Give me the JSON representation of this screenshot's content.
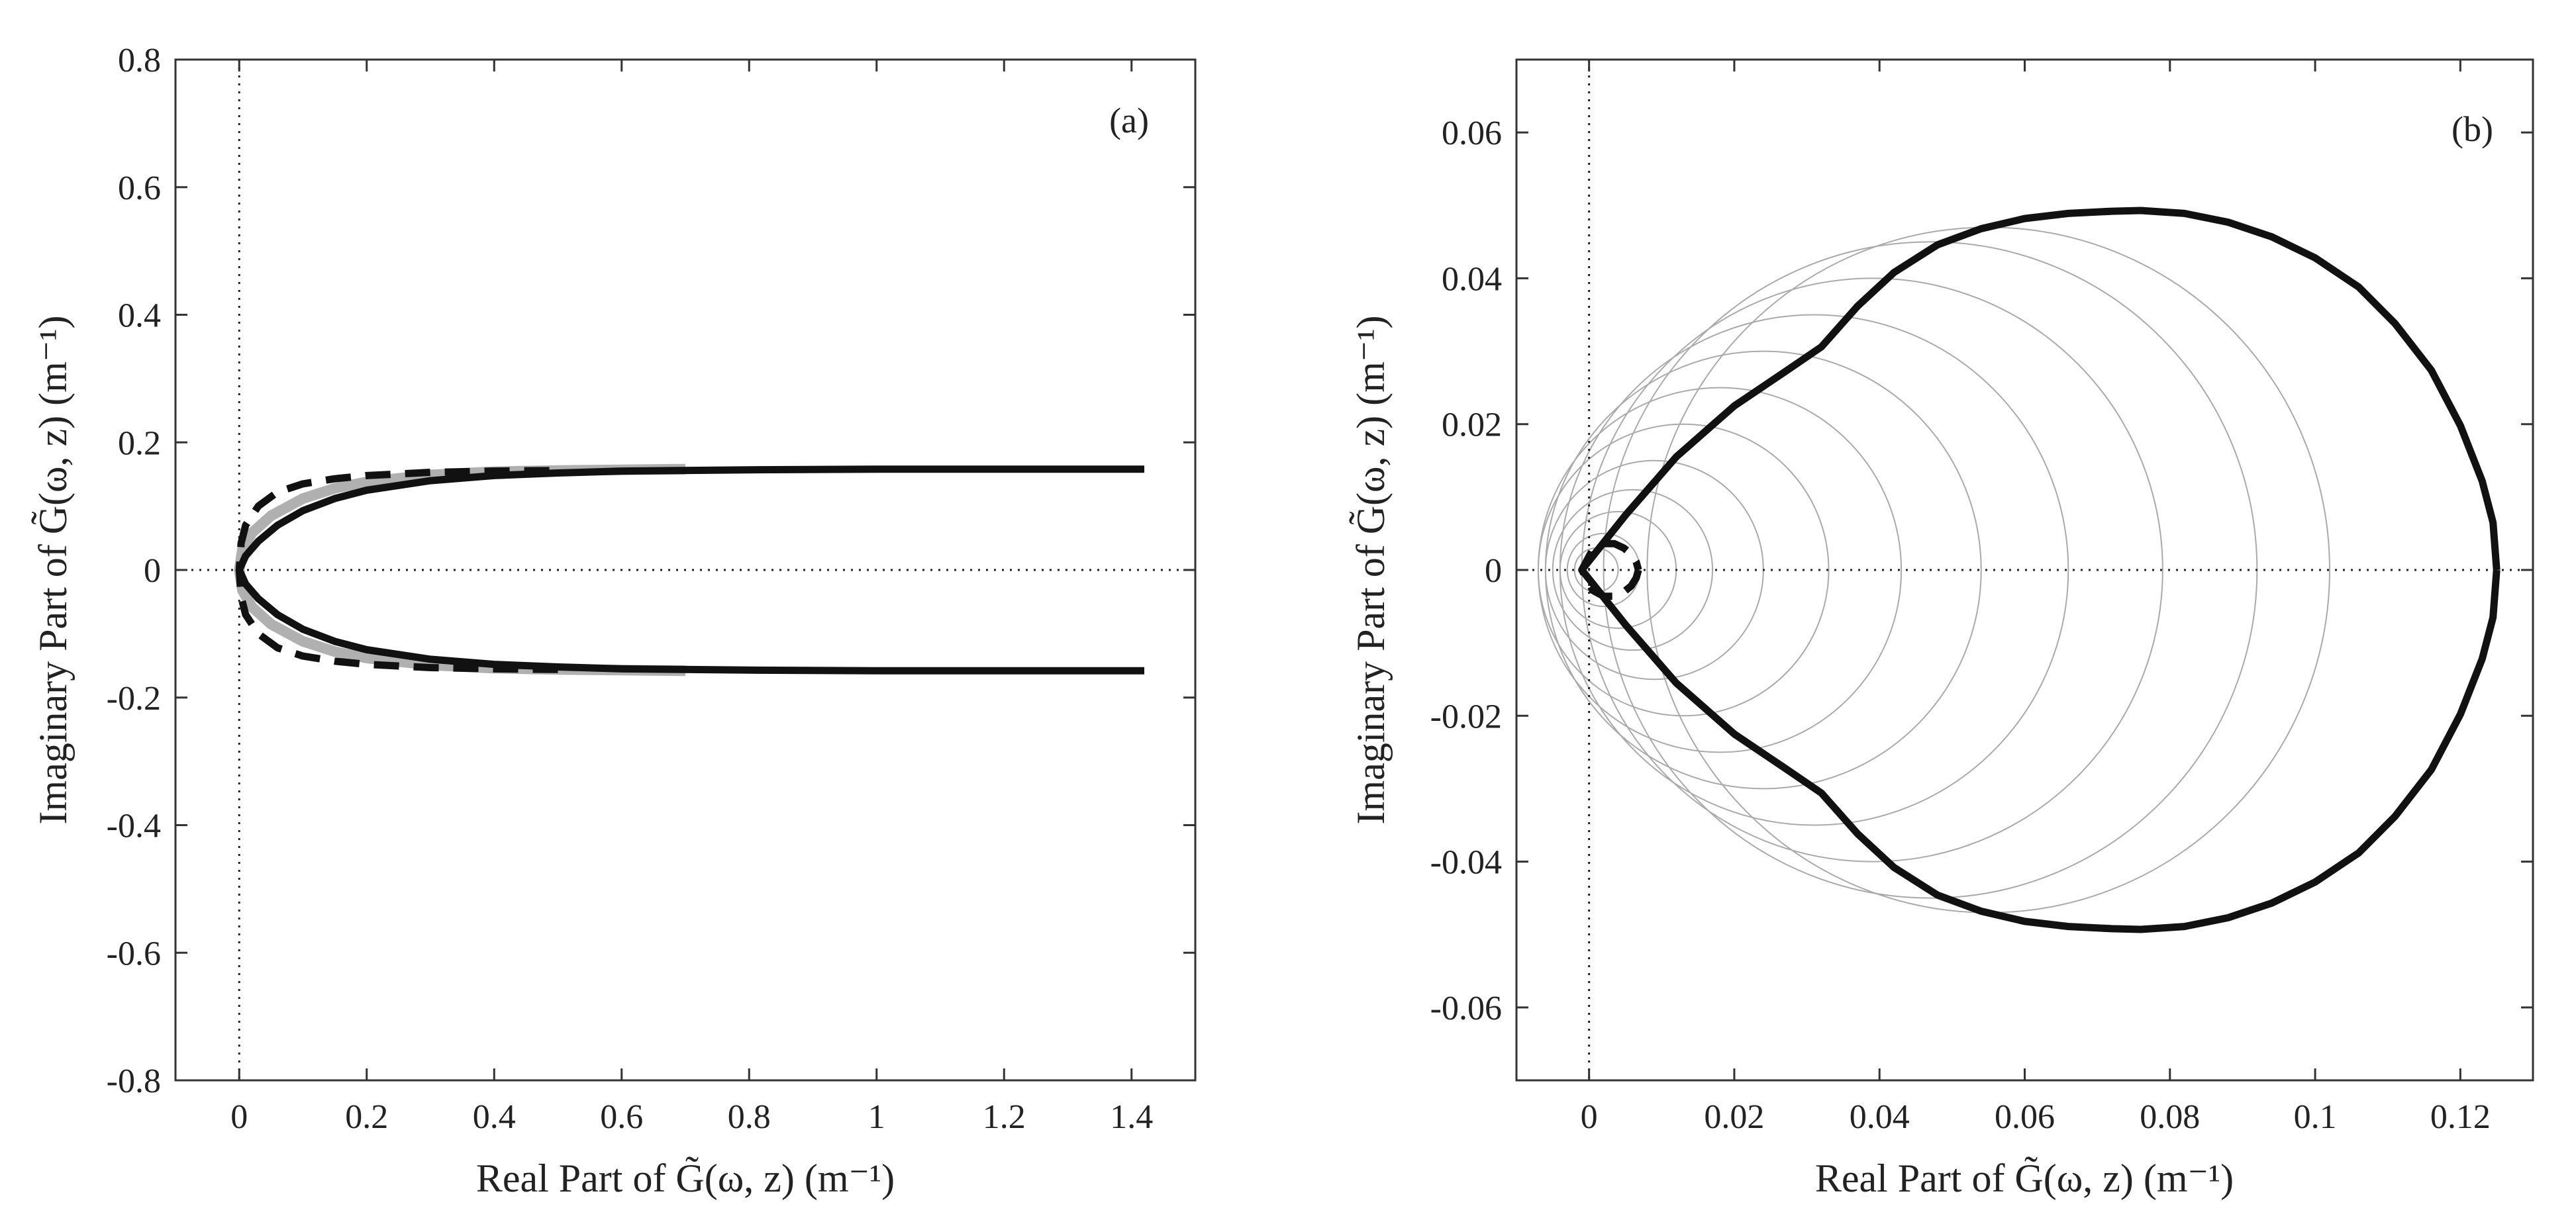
{
  "chart_data": [
    {
      "type": "line",
      "panel_label": "(a)",
      "xlabel": "Real Part of G̃(ω, z) (m⁻¹)",
      "ylabel": "Imaginary Part of G̃(ω, z) (m⁻¹)",
      "xlim": [
        -0.1,
        1.5
      ],
      "ylim": [
        -0.8,
        0.8
      ],
      "xticks": [
        0,
        0.2,
        0.4,
        0.6,
        0.8,
        1,
        1.2,
        1.4
      ],
      "xtick_labels": [
        "0",
        "0.2",
        "0.4",
        "0.6",
        "0.8",
        "1",
        "1.2",
        "1.4"
      ],
      "yticks": [
        0.8,
        0.6,
        0.4,
        0.2,
        0,
        -0.2,
        -0.4,
        -0.6,
        -0.8
      ],
      "ytick_labels": [
        "0.8",
        "0.6",
        "0.4",
        "0.2",
        "0",
        "-0.2",
        "-0.4",
        "-0.6",
        "-0.8"
      ],
      "reference_lines": {
        "x": 0,
        "y": 0,
        "style": "dotted"
      },
      "series": [
        {
          "name": "gray",
          "style": "gray-solid",
          "x": [
            0,
            0.005,
            0.02,
            0.05,
            0.1,
            0.15,
            0.2,
            0.3,
            0.4,
            0.5,
            0.6,
            0.7
          ],
          "y": [
            0,
            0.032,
            0.058,
            0.085,
            0.112,
            0.128,
            0.138,
            0.149,
            0.154,
            0.156,
            0.157,
            0.158
          ]
        },
        {
          "name": "dashed",
          "style": "black-dashed",
          "x": [
            0,
            0.003,
            0.01,
            0.03,
            0.06,
            0.1,
            0.15,
            0.2,
            0.3,
            0.4,
            0.5
          ],
          "y": [
            0,
            0.042,
            0.07,
            0.1,
            0.122,
            0.135,
            0.143,
            0.148,
            0.153,
            0.155,
            0.156
          ]
        },
        {
          "name": "solid",
          "style": "black-solid",
          "x": [
            0,
            0.01,
            0.03,
            0.06,
            0.1,
            0.15,
            0.2,
            0.3,
            0.4,
            0.5,
            0.6,
            0.8,
            1.0,
            1.2,
            1.42
          ],
          "y": [
            0,
            0.022,
            0.045,
            0.07,
            0.093,
            0.112,
            0.125,
            0.14,
            0.148,
            0.152,
            0.155,
            0.157,
            0.158,
            0.158,
            0.158
          ]
        }
      ]
    },
    {
      "type": "line",
      "panel_label": "(b)",
      "xlabel": "Real Part of G̃(ω, z) (m⁻¹)",
      "ylabel": "Imaginary Part of G̃(ω, z) (m⁻¹)",
      "xlim": [
        -0.01,
        0.13
      ],
      "ylim": [
        -0.07,
        0.07
      ],
      "xticks": [
        0,
        0.02,
        0.04,
        0.06,
        0.08,
        0.1,
        0.12
      ],
      "xtick_labels": [
        "0",
        "0.02",
        "0.04",
        "0.06",
        "0.08",
        "0.1",
        "0.12"
      ],
      "yticks": [
        0.06,
        0.04,
        0.02,
        0,
        -0.02,
        -0.04,
        -0.06
      ],
      "ytick_labels": [
        "0.06",
        "0.04",
        "0.02",
        "0",
        "-0.02",
        "-0.04",
        "-0.06"
      ],
      "reference_lines": {
        "x": 0,
        "y": 0,
        "style": "dotted"
      },
      "gray_circles": {
        "centers_x": [
          0.001,
          0.002,
          0.004,
          0.006,
          0.009,
          0.013,
          0.018,
          0.024,
          0.031,
          0.039,
          0.047,
          0.055
        ],
        "radii": [
          0.003,
          0.005,
          0.008,
          0.011,
          0.015,
          0.02,
          0.025,
          0.03,
          0.035,
          0.04,
          0.045,
          0.047
        ]
      },
      "series": [
        {
          "name": "teardrop",
          "style": "black-solid",
          "x": [
            -0.001,
            0.005,
            0.012,
            0.02,
            0.027,
            0.032,
            0.037,
            0.042,
            0.048,
            0.054,
            0.06,
            0.066,
            0.072,
            0.076,
            0.082,
            0.088,
            0.094,
            0.1,
            0.106,
            0.111,
            0.116,
            0.12,
            0.123,
            0.1245,
            0.125
          ],
          "y": [
            0,
            0.0075,
            0.0155,
            0.0225,
            0.0272,
            0.0306,
            0.0362,
            0.0408,
            0.0446,
            0.0468,
            0.0482,
            0.0489,
            0.0492,
            0.0493,
            0.0489,
            0.0477,
            0.0457,
            0.0428,
            0.0388,
            0.0338,
            0.0274,
            0.0198,
            0.0122,
            0.0065,
            0
          ]
        },
        {
          "name": "dashed-arc",
          "style": "black-dashed",
          "x": [
            -0.001,
            0.0005,
            0.002,
            0.0035,
            0.0048,
            0.0058,
            0.0065,
            0.0068
          ],
          "y": [
            0,
            0.0028,
            0.0036,
            0.0036,
            0.003,
            0.0022,
            0.0011,
            0
          ]
        }
      ]
    }
  ]
}
